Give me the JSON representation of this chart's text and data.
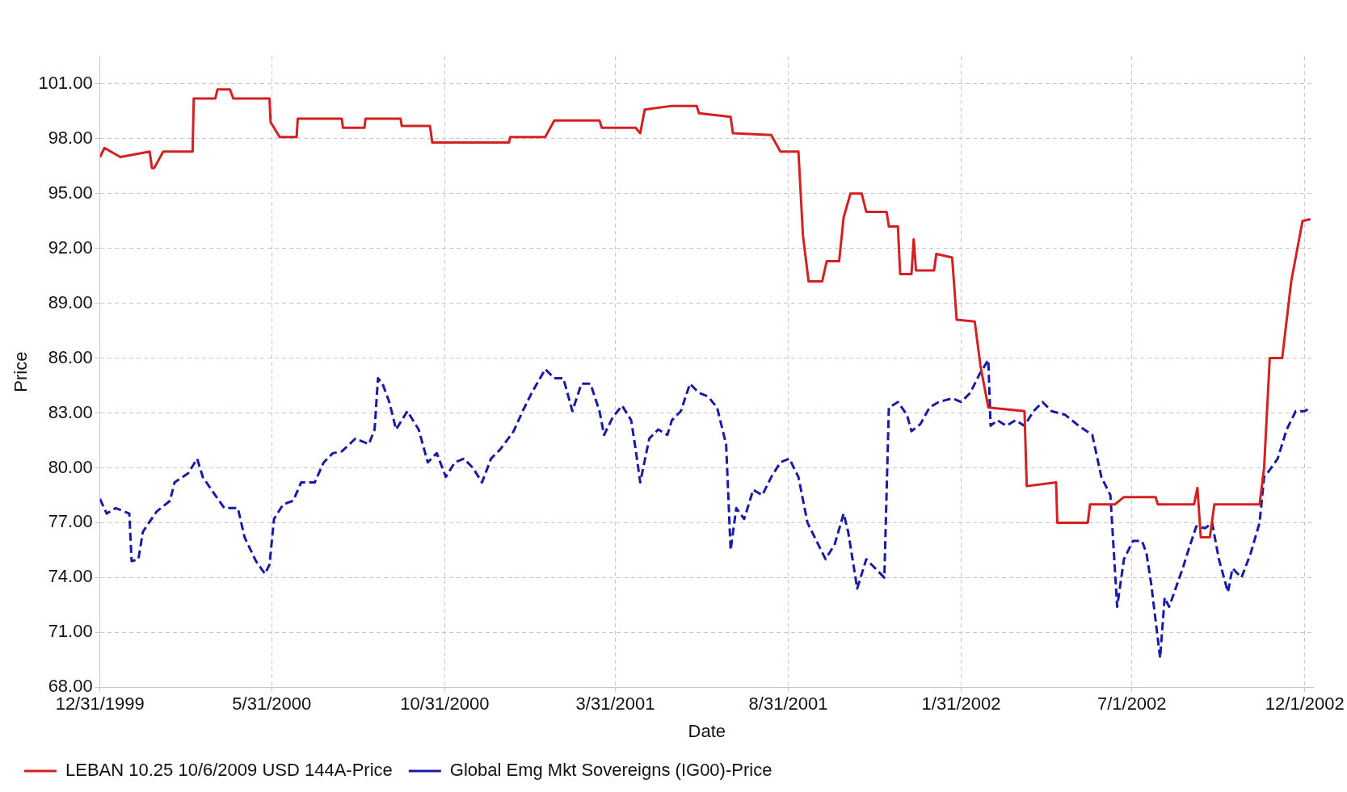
{
  "chart_data": {
    "type": "line",
    "xlabel": "Date",
    "ylabel": "Price",
    "xlim": [
      "1999-12-31",
      "2002-12-09"
    ],
    "xticks": [
      {
        "value": "1999-12-31",
        "label": "12/31/1999"
      },
      {
        "value": "2000-05-31",
        "label": "5/31/2000"
      },
      {
        "value": "2000-10-31",
        "label": "10/31/2000"
      },
      {
        "value": "2001-03-31",
        "label": "3/31/2001"
      },
      {
        "value": "2001-08-31",
        "label": "8/31/2001"
      },
      {
        "value": "2002-01-31",
        "label": "1/31/2002"
      },
      {
        "value": "2002-07-01",
        "label": "7/1/2002"
      },
      {
        "value": "2002-12-01",
        "label": "12/1/2002"
      }
    ],
    "ylim": [
      68,
      102.5
    ],
    "yticks": [
      {
        "value": 68,
        "label": "68.00"
      },
      {
        "value": 71,
        "label": "71.00"
      },
      {
        "value": 74,
        "label": "74.00"
      },
      {
        "value": 77,
        "label": "77.00"
      },
      {
        "value": 80,
        "label": "80.00"
      },
      {
        "value": 83,
        "label": "83.00"
      },
      {
        "value": 86,
        "label": "86.00"
      },
      {
        "value": 89,
        "label": "89.00"
      },
      {
        "value": 92,
        "label": "92.00"
      },
      {
        "value": 95,
        "label": "95.00"
      },
      {
        "value": 98,
        "label": "98.00"
      },
      {
        "value": 101,
        "label": "101.00"
      }
    ],
    "grid": true,
    "legend": "bottom",
    "marker": "none",
    "series": [
      {
        "name": "LEBAN 10.25 10/6/2009 USD 144A-Price",
        "color": "#d42020",
        "line_style": "solid",
        "x": [
          "1999-12-31",
          "2000-01-04",
          "2000-01-18",
          "2000-02-13",
          "2000-02-15",
          "2000-02-17",
          "2000-02-25",
          "2000-03-22",
          "2000-03-23",
          "2000-04-11",
          "2000-04-13",
          "2000-04-24",
          "2000-04-27",
          "2000-05-29",
          "2000-05-30",
          "2000-06-07",
          "2000-06-22",
          "2000-06-23",
          "2000-08-01",
          "2000-08-02",
          "2000-08-21",
          "2000-08-22",
          "2000-09-22",
          "2000-09-23",
          "2000-10-18",
          "2000-10-20",
          "2000-12-27",
          "2000-12-28",
          "2001-01-28",
          "2001-02-05",
          "2001-03-17",
          "2001-03-19",
          "2001-04-18",
          "2001-04-22",
          "2001-04-26",
          "2001-05-20",
          "2001-06-11",
          "2001-06-13",
          "2001-07-11",
          "2001-07-13",
          "2001-08-16",
          "2001-08-24",
          "2001-09-09",
          "2001-09-13",
          "2001-09-18",
          "2001-09-30",
          "2001-10-04",
          "2001-10-15",
          "2001-10-19",
          "2001-10-25",
          "2001-11-04",
          "2001-11-08",
          "2001-11-26",
          "2001-11-28",
          "2001-12-06",
          "2001-12-08",
          "2001-12-18",
          "2001-12-20",
          "2001-12-22",
          "2002-01-07",
          "2002-01-09",
          "2002-01-23",
          "2002-01-27",
          "2002-02-12",
          "2002-02-17",
          "2002-02-24",
          "2002-03-28",
          "2002-03-30",
          "2002-04-25",
          "2002-04-26",
          "2002-05-23",
          "2002-05-25",
          "2002-06-16",
          "2002-06-24",
          "2002-07-22",
          "2002-07-24",
          "2002-08-25",
          "2002-08-28",
          "2002-08-31",
          "2002-09-08",
          "2002-09-12",
          "2002-10-22",
          "2002-10-26",
          "2002-10-31",
          "2002-11-11",
          "2002-11-19",
          "2002-11-29",
          "2002-12-06"
        ],
        "values": [
          97.0,
          97.5,
          97.0,
          97.3,
          96.4,
          96.4,
          97.3,
          97.3,
          100.2,
          100.2,
          100.7,
          100.7,
          100.2,
          100.2,
          98.9,
          98.1,
          98.1,
          99.1,
          99.1,
          98.6,
          98.6,
          99.1,
          99.1,
          98.7,
          98.7,
          97.8,
          97.8,
          98.1,
          98.1,
          99.0,
          99.0,
          98.6,
          98.6,
          98.3,
          99.6,
          99.8,
          99.8,
          99.4,
          99.2,
          98.3,
          98.2,
          97.3,
          97.3,
          92.7,
          90.2,
          90.2,
          91.3,
          91.3,
          93.7,
          95.0,
          95.0,
          94.0,
          94.0,
          93.2,
          93.2,
          90.6,
          90.6,
          92.5,
          90.8,
          90.8,
          91.7,
          91.5,
          88.1,
          88.0,
          85.6,
          83.3,
          83.1,
          79.0,
          79.2,
          77.0,
          77.0,
          78.0,
          78.0,
          78.4,
          78.4,
          78.0,
          78.0,
          78.9,
          76.2,
          76.2,
          78.0,
          78.0,
          80.0,
          86.0,
          86.0,
          90.2,
          93.5,
          93.6
        ]
      },
      {
        "name": "Global Emg Mkt Sovereigns (IG00)-Price",
        "color": "#1a1aa8",
        "line_style": "dashed",
        "x": [
          "1999-12-31",
          "2000-01-06",
          "2000-01-14",
          "2000-01-26",
          "2000-01-28",
          "2000-02-03",
          "2000-02-07",
          "2000-02-19",
          "2000-03-02",
          "2000-03-06",
          "2000-03-18",
          "2000-03-26",
          "2000-03-31",
          "2000-04-11",
          "2000-04-19",
          "2000-05-01",
          "2000-05-07",
          "2000-05-17",
          "2000-05-25",
          "2000-05-29",
          "2000-06-02",
          "2000-06-10",
          "2000-06-19",
          "2000-06-26",
          "2000-07-08",
          "2000-07-16",
          "2000-07-24",
          "2000-08-01",
          "2000-08-13",
          "2000-08-25",
          "2000-08-30",
          "2000-09-02",
          "2000-09-06",
          "2000-09-12",
          "2000-09-18",
          "2000-09-28",
          "2000-10-08",
          "2000-10-16",
          "2000-10-24",
          "2000-11-01",
          "2000-11-09",
          "2000-11-17",
          "2000-11-25",
          "2000-12-03",
          "2000-12-11",
          "2000-12-19",
          "2000-12-31",
          "2001-01-08",
          "2001-01-16",
          "2001-01-28",
          "2001-02-05",
          "2001-02-13",
          "2001-02-21",
          "2001-03-01",
          "2001-03-09",
          "2001-03-17",
          "2001-03-21",
          "2001-03-29",
          "2001-04-06",
          "2001-04-14",
          "2001-04-18",
          "2001-04-22",
          "2001-04-30",
          "2001-05-08",
          "2001-05-16",
          "2001-05-20",
          "2001-05-28",
          "2001-06-05",
          "2001-06-13",
          "2001-06-21",
          "2001-06-29",
          "2001-07-07",
          "2001-07-11",
          "2001-07-16",
          "2001-07-23",
          "2001-07-31",
          "2001-08-08",
          "2001-08-16",
          "2001-08-24",
          "2001-09-01",
          "2001-09-09",
          "2001-09-17",
          "2001-09-25",
          "2001-10-03",
          "2001-10-11",
          "2001-10-19",
          "2001-10-23",
          "2001-10-31",
          "2001-11-08",
          "2001-11-16",
          "2001-11-24",
          "2001-11-28",
          "2001-12-06",
          "2001-12-14",
          "2001-12-18",
          "2001-12-26",
          "2002-01-03",
          "2002-01-11",
          "2002-01-23",
          "2002-01-31",
          "2002-02-08",
          "2002-02-16",
          "2002-02-24",
          "2002-02-26",
          "2002-03-04",
          "2002-03-12",
          "2002-03-20",
          "2002-03-28",
          "2002-04-05",
          "2002-04-13",
          "2002-04-21",
          "2002-05-03",
          "2002-05-15",
          "2002-05-27",
          "2002-06-04",
          "2002-06-12",
          "2002-06-18",
          "2002-06-24",
          "2002-07-02",
          "2002-07-10",
          "2002-07-14",
          "2002-07-18",
          "2002-07-26",
          "2002-07-30",
          "2002-08-03",
          "2002-08-15",
          "2002-08-19",
          "2002-08-27",
          "2002-09-04",
          "2002-09-10",
          "2002-09-16",
          "2002-09-24",
          "2002-09-28",
          "2002-10-06",
          "2002-10-14",
          "2002-10-22",
          "2002-10-26",
          "2002-10-30",
          "2002-11-07",
          "2002-11-15",
          "2002-11-23",
          "2002-12-01",
          "2002-12-06"
        ],
        "values": [
          78.3,
          77.5,
          77.8,
          77.5,
          74.9,
          75.0,
          76.5,
          77.6,
          78.2,
          79.2,
          79.7,
          80.5,
          79.5,
          78.5,
          77.8,
          77.8,
          76.2,
          74.9,
          74.2,
          74.7,
          77.2,
          78.0,
          78.2,
          79.2,
          79.2,
          80.3,
          80.8,
          80.9,
          81.6,
          81.3,
          82.1,
          84.9,
          84.6,
          83.6,
          82.1,
          83.1,
          82.1,
          80.3,
          80.8,
          79.5,
          80.3,
          80.5,
          80.0,
          79.2,
          80.5,
          81.0,
          82.0,
          83.1,
          84.1,
          85.4,
          84.9,
          84.9,
          83.1,
          84.6,
          84.6,
          83.1,
          81.8,
          82.8,
          83.4,
          82.6,
          81.0,
          79.2,
          81.6,
          82.1,
          81.8,
          82.6,
          83.1,
          84.6,
          84.1,
          83.9,
          83.3,
          81.3,
          75.5,
          77.8,
          77.2,
          78.8,
          78.5,
          79.5,
          80.3,
          80.5,
          79.5,
          77.0,
          76.0,
          75.0,
          75.8,
          77.5,
          76.5,
          73.4,
          75.0,
          74.5,
          74.0,
          83.3,
          83.6,
          82.9,
          82.0,
          82.4,
          83.3,
          83.6,
          83.8,
          83.6,
          84.1,
          85.1,
          85.9,
          82.3,
          82.6,
          82.3,
          82.6,
          82.3,
          83.1,
          83.6,
          83.1,
          82.9,
          82.3,
          81.8,
          79.5,
          78.5,
          72.4,
          75.0,
          76.0,
          76.0,
          75.3,
          73.7,
          69.6,
          72.9,
          72.4,
          74.5,
          75.3,
          76.8,
          76.7,
          77.0,
          75.0,
          73.2,
          74.5,
          74.0,
          75.3,
          77.0,
          79.5,
          79.8,
          80.5,
          82.1,
          83.1,
          83.1,
          83.3
        ]
      }
    ]
  }
}
